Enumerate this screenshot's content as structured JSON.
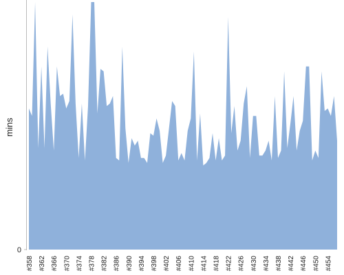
{
  "chart_data": {
    "type": "area",
    "y_label": "mins",
    "color": "#8fb1db",
    "categories": [
      "#358",
      null,
      null,
      null,
      "#362",
      null,
      null,
      null,
      "#366",
      null,
      null,
      null,
      "#370",
      null,
      null,
      null,
      "#374",
      null,
      null,
      null,
      "#378",
      null,
      null,
      null,
      "#382",
      null,
      null,
      null,
      "#386",
      null,
      null,
      null,
      "#390",
      null,
      null,
      null,
      "#394",
      null,
      null,
      null,
      "#398",
      null,
      null,
      null,
      "#402",
      null,
      null,
      null,
      "#406",
      null,
      null,
      null,
      "#410",
      null,
      null,
      null,
      "#414",
      null,
      null,
      null,
      "#418",
      null,
      null,
      null,
      "#422",
      null,
      null,
      null,
      "#426",
      null,
      null,
      null,
      "#430",
      null,
      null,
      null,
      "#434",
      null,
      null,
      null,
      "#438",
      null,
      null,
      null,
      "#442",
      null,
      null,
      null,
      "#446",
      null,
      null,
      null,
      "#450",
      null,
      null,
      null,
      "#454",
      null,
      null,
      null
    ],
    "values": [
      57,
      54,
      100,
      41,
      74,
      41,
      82,
      59,
      40,
      74,
      62,
      63,
      57,
      60,
      95,
      59,
      37,
      59,
      36,
      58,
      100,
      100,
      55,
      73,
      72,
      58,
      59,
      62,
      37,
      36,
      82,
      49,
      35,
      45,
      42,
      44,
      37,
      37,
      35,
      47,
      46,
      53,
      48,
      35,
      38,
      49,
      60,
      58,
      36,
      39,
      36,
      48,
      53,
      80,
      36,
      55,
      34,
      35,
      37,
      47,
      36,
      45,
      36,
      38,
      94,
      47,
      58,
      40,
      44,
      59,
      66,
      37,
      54,
      54,
      38,
      38,
      40,
      44,
      36,
      62,
      37,
      40,
      72,
      41,
      51,
      62,
      40,
      48,
      52,
      74,
      74,
      36,
      40,
      37,
      72,
      56,
      57,
      54,
      62,
      44
    ],
    "ylim": [
      0,
      100
    ],
    "yticks": [
      0
    ]
  }
}
